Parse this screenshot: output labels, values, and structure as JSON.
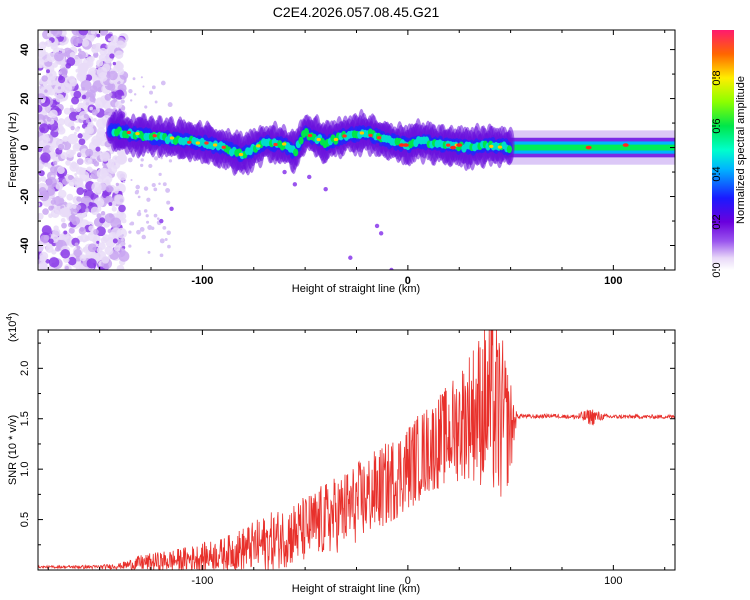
{
  "title": "C2E4.2026.057.08.45.G21",
  "chart_data": [
    {
      "type": "heatmap",
      "name": "spectrogram",
      "xlabel": "Height of straight line (km)",
      "ylabel": "Frequency (Hz)",
      "xlim": [
        -180,
        130
      ],
      "ylim": [
        -50,
        48
      ],
      "xticks": [
        -100,
        0,
        100
      ],
      "yticks": [
        -40,
        -20,
        0,
        20,
        40
      ],
      "colorbar": {
        "label": "Normalized spectral amplitude",
        "range": [
          0,
          1
        ],
        "ticks": [
          0.0,
          0.2,
          0.4,
          0.6,
          0.8
        ],
        "tick_labels": [
          "0.0",
          "0.2",
          "0.4",
          "0.6",
          "0.8"
        ]
      },
      "ridge": {
        "x": [
          -145,
          -130,
          -120,
          -110,
          -100,
          -90,
          -80,
          -70,
          -60,
          -55,
          -50,
          -45,
          -40,
          -30,
          -20,
          -10,
          -5,
          0,
          5,
          10,
          20,
          30,
          40,
          50,
          60,
          80,
          100,
          130
        ],
        "y": [
          7,
          5,
          4,
          3,
          2,
          0,
          -3,
          2,
          1,
          -2,
          6,
          4,
          2,
          5,
          6,
          3,
          2,
          1,
          3,
          2,
          1,
          0,
          1,
          0,
          0,
          0,
          0,
          0
        ]
      }
    },
    {
      "type": "line",
      "name": "snr",
      "xlabel": "Height of straight line (km)",
      "ylabel": "SNR (10 * v/v)",
      "exponent_label": "(x10",
      "exponent": "4",
      "exponent_close": ")",
      "xlim": [
        -180,
        130
      ],
      "ylim": [
        0,
        23800
      ],
      "xticks": [
        -100,
        0,
        100
      ],
      "yticks": [
        5000,
        10000,
        15000,
        20000
      ],
      "ytick_labels": [
        "0.5",
        "1.0",
        "1.5",
        "2.0"
      ],
      "color": "#e8302b",
      "envelope": {
        "x": [
          -180,
          -150,
          -140,
          -130,
          -110,
          -90,
          -70,
          -50,
          -30,
          -10,
          10,
          20,
          30,
          40,
          45,
          50,
          53,
          55,
          60,
          70,
          80,
          90,
          95,
          100,
          130
        ],
        "y_mid": [
          300,
          300,
          400,
          700,
          1000,
          1600,
          2600,
          4000,
          6000,
          8500,
          12000,
          13500,
          15500,
          16500,
          15000,
          14000,
          15200,
          15300,
          15200,
          15300,
          15200,
          15200,
          15200,
          15200,
          15200
        ],
        "y_amp": [
          100,
          200,
          300,
          800,
          1200,
          1600,
          2800,
          3400,
          4000,
          4200,
          4500,
          5000,
          6500,
          9000,
          9000,
          5000,
          300,
          200,
          200,
          200,
          200,
          900,
          300,
          200,
          200
        ]
      }
    }
  ]
}
